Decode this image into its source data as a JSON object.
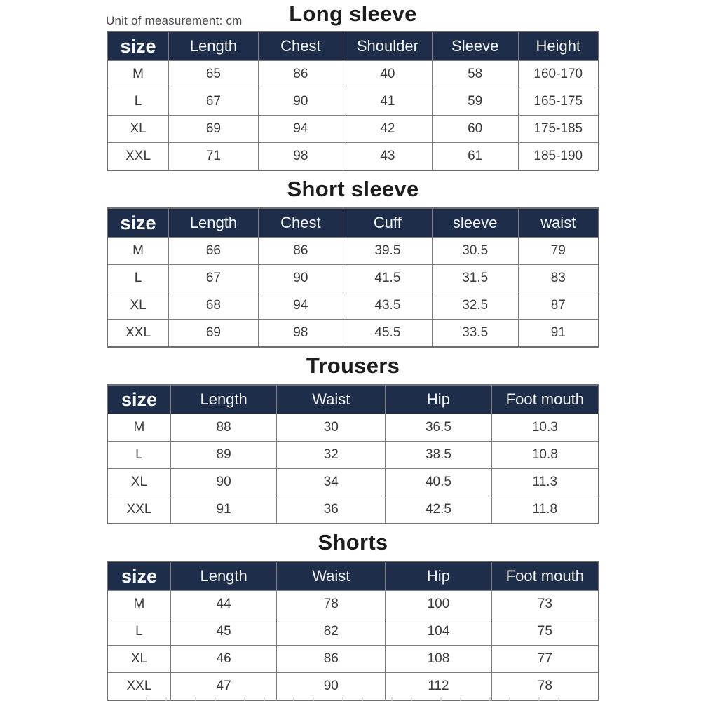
{
  "page": {
    "unit_note": "Unit of measurement: cm",
    "background_color": "#ffffff",
    "header_bg_color": "#1e2e4a",
    "header_text_color": "#f2f4f7",
    "border_color": "#7c7c7c",
    "body_text_color": "#3a3a3a",
    "title_color": "#1d1d1d"
  },
  "tables": [
    {
      "title": "Long sleeve",
      "columns": [
        "size",
        "Length",
        "Chest",
        "Shoulder",
        "Sleeve",
        "Height"
      ],
      "rows": [
        [
          "M",
          "65",
          "86",
          "40",
          "58",
          "160-170"
        ],
        [
          "L",
          "67",
          "90",
          "41",
          "59",
          "165-175"
        ],
        [
          "XL",
          "69",
          "94",
          "42",
          "60",
          "175-185"
        ],
        [
          "XXL",
          "71",
          "98",
          "43",
          "61",
          "185-190"
        ]
      ]
    },
    {
      "title": "Short sleeve",
      "columns": [
        "size",
        "Length",
        "Chest",
        "Cuff",
        "sleeve",
        "waist"
      ],
      "rows": [
        [
          "M",
          "66",
          "86",
          "39.5",
          "30.5",
          "79"
        ],
        [
          "L",
          "67",
          "90",
          "41.5",
          "31.5",
          "83"
        ],
        [
          "XL",
          "68",
          "94",
          "43.5",
          "32.5",
          "87"
        ],
        [
          "XXL",
          "69",
          "98",
          "45.5",
          "33.5",
          "91"
        ]
      ]
    },
    {
      "title": "Trousers",
      "columns": [
        "size",
        "Length",
        "Waist",
        "Hip",
        "Foot mouth"
      ],
      "rows": [
        [
          "M",
          "88",
          "30",
          "36.5",
          "10.3"
        ],
        [
          "L",
          "89",
          "32",
          "38.5",
          "10.8"
        ],
        [
          "XL",
          "90",
          "34",
          "40.5",
          "11.3"
        ],
        [
          "XXL",
          "91",
          "36",
          "42.5",
          "11.8"
        ]
      ]
    },
    {
      "title": "Shorts",
      "columns": [
        "size",
        "Length",
        "Waist",
        "Hip",
        "Foot mouth"
      ],
      "rows": [
        [
          "M",
          "44",
          "78",
          "100",
          "73"
        ],
        [
          "L",
          "45",
          "82",
          "104",
          "75"
        ],
        [
          "XL",
          "46",
          "86",
          "108",
          "77"
        ],
        [
          "XXL",
          "47",
          "90",
          "112",
          "78"
        ]
      ]
    }
  ]
}
